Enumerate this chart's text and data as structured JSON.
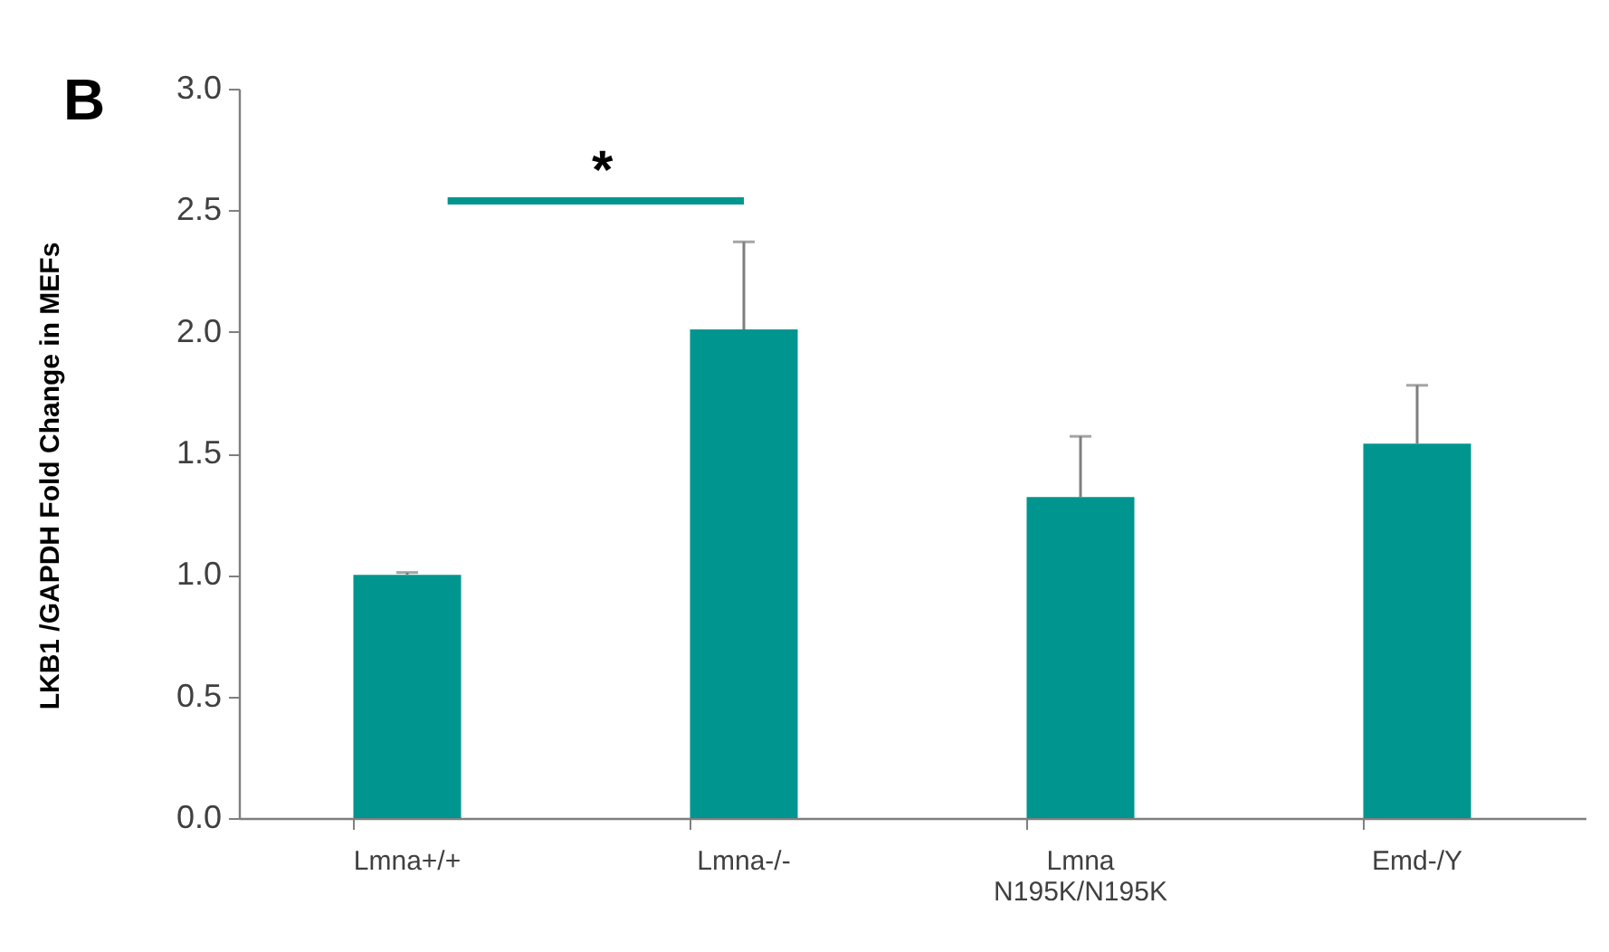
{
  "chart_data": {
    "type": "bar",
    "title": "B",
    "ylabel": "LKB1 /GAPDH Fold Change in MEFs",
    "categories": [
      "Lmna+/+",
      "Lmna-/-",
      "Lmna\nN195K/N195K",
      "Emd-/Y"
    ],
    "values": [
      1.0,
      2.01,
      1.32,
      1.54
    ],
    "color": "#00968f",
    "errors": [
      [
        1.0,
        1.01
      ],
      [
        2.01,
        2.37
      ],
      [
        1.32,
        1.57
      ],
      [
        1.54,
        1.78
      ]
    ],
    "ylim": [
      0,
      3.0
    ],
    "yticks": [
      {
        "value": 0,
        "label": "0.0"
      },
      {
        "value": 0.5,
        "label": "0.5"
      },
      {
        "value": 1.0,
        "label": "1.0"
      },
      {
        "value": 1.5,
        "label": "1.5"
      },
      {
        "value": 2.0,
        "label": "2.0"
      },
      {
        "value": 2.5,
        "label": "2.5"
      },
      {
        "value": 3.0,
        "label": "3.0"
      }
    ],
    "annotations": [
      "*"
    ]
  }
}
